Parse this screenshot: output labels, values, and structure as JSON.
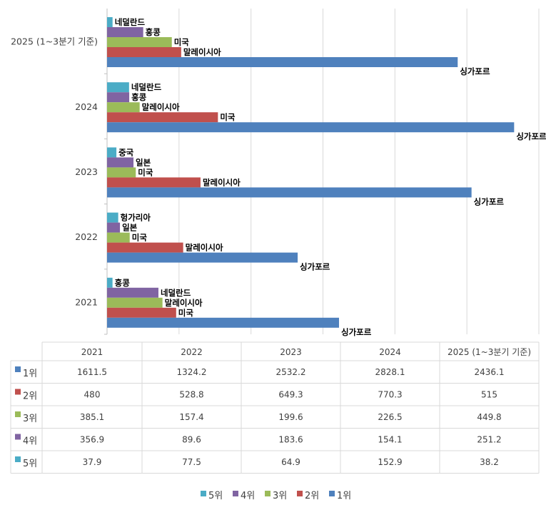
{
  "chart_data": {
    "type": "bar",
    "orientation": "horizontal",
    "categories": [
      "2021",
      "2022",
      "2023",
      "2024",
      "2025 (1~3분기 기준)"
    ],
    "xlim": [
      0,
      3000
    ],
    "grid": true,
    "legend_position": "bottom",
    "series": [
      {
        "name": "5위",
        "color": "#4BACC6",
        "values": [
          37.9,
          77.5,
          64.9,
          152.9,
          38.2
        ],
        "labels": [
          "홍콩",
          "헝가리아",
          "중국",
          "네덜란드",
          "네덜란드"
        ]
      },
      {
        "name": "4위",
        "color": "#8064A2",
        "values": [
          356.9,
          89.6,
          183.6,
          154.1,
          251.2
        ],
        "labels": [
          "네덜란드",
          "일본",
          "일본",
          "홍콩",
          "홍콩"
        ]
      },
      {
        "name": "3위",
        "color": "#9BBB59",
        "values": [
          385.1,
          157.4,
          199.6,
          226.5,
          449.8
        ],
        "labels": [
          "말레이시아",
          "미국",
          "미국",
          "말레이시아",
          "미국"
        ]
      },
      {
        "name": "2위",
        "color": "#C0504D",
        "values": [
          480,
          528.8,
          649.3,
          770.3,
          515
        ],
        "labels": [
          "미국",
          "말레이시아",
          "말레이시아",
          "미국",
          "말레이시아"
        ]
      },
      {
        "name": "1위",
        "color": "#4F81BD",
        "values": [
          1611.5,
          1324.2,
          2532.2,
          2828.1,
          2436.1
        ],
        "labels": [
          "싱가포르",
          "싱가포르",
          "싱가포르",
          "싱가포르",
          "싱가포르"
        ]
      }
    ],
    "data_table": true
  }
}
